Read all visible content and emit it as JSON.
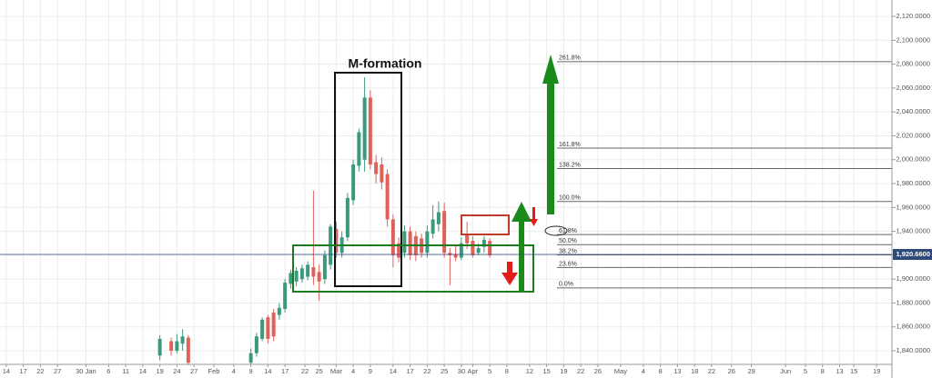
{
  "chart_data": {
    "type": "candlestick",
    "annotation": "M-formation",
    "up_color": "#3b9a7e",
    "down_color": "#e0605a",
    "x": [
      27,
      29,
      30,
      31,
      32,
      43,
      44,
      45,
      46,
      47,
      48,
      49,
      50,
      51,
      52,
      53,
      54,
      55,
      56,
      57,
      58,
      59,
      60,
      61,
      62,
      63,
      64,
      65,
      66,
      67,
      68,
      69,
      70,
      71,
      72,
      73,
      74,
      75,
      76,
      77,
      78,
      79,
      80,
      81,
      82,
      83,
      84,
      85
    ],
    "open": [
      1836,
      1848,
      1840,
      1846,
      1851,
      1830,
      1838,
      1850,
      1868,
      1872,
      1870,
      1875,
      1896,
      1898,
      1900,
      1902,
      1910,
      1906,
      1900,
      1912,
      1942,
      1922,
      1935,
      1966,
      1995,
      2000,
      2052,
      1998,
      1996,
      1988,
      1950,
      1930,
      1922,
      1940,
      1936,
      1934,
      1922,
      1938,
      1946,
      1957,
      1922,
      1921,
      1918,
      1938,
      1932,
      1922,
      1927,
      1932
    ],
    "high": [
      1853,
      1851,
      1854,
      1858,
      1853,
      1842,
      1855,
      1868,
      1870,
      1875,
      1880,
      1900,
      1908,
      1910,
      1912,
      1915,
      1974,
      1912,
      1924,
      1946,
      1948,
      1940,
      1972,
      2000,
      2026,
      2069,
      2058,
      2004,
      2002,
      1992,
      1954,
      1935,
      1945,
      1944,
      1940,
      1938,
      1945,
      1962,
      1965,
      1964,
      1926,
      1928,
      1935,
      1948,
      1936,
      1930,
      1936,
      1934
    ],
    "low": [
      1832,
      1836,
      1838,
      1840,
      1828,
      1829,
      1835,
      1848,
      1846,
      1848,
      1866,
      1872,
      1892,
      1894,
      1897,
      1899,
      1895,
      1882,
      1896,
      1908,
      1918,
      1918,
      1932,
      1962,
      1990,
      1990,
      1992,
      1980,
      1975,
      1944,
      1910,
      1914,
      1918,
      1916,
      1915,
      1918,
      1918,
      1934,
      1940,
      1918,
      1895,
      1915,
      1916,
      1925,
      1918,
      1920,
      1922,
      1918
    ],
    "close": [
      1850,
      1840,
      1848,
      1852,
      1830,
      1838,
      1852,
      1866,
      1850,
      1852,
      1876,
      1897,
      1905,
      1907,
      1909,
      1912,
      1902,
      1898,
      1920,
      1944,
      1922,
      1935,
      1968,
      1996,
      2023,
      2052,
      1996,
      1988,
      1981,
      1950,
      1920,
      1918,
      1940,
      1920,
      1920,
      1922,
      1940,
      1950,
      1956,
      1922,
      1920,
      1918,
      1930,
      1930,
      1920,
      1926,
      1933,
      1920
    ],
    "xlim": [
      -1.1,
      155.7
    ],
    "ylim": [
      1828.6,
      2133.7
    ],
    "xticks": [
      {
        "value": 0,
        "label": "14"
      },
      {
        "value": 3,
        "label": "17"
      },
      {
        "value": 6,
        "label": "22"
      },
      {
        "value": 9,
        "label": "27"
      },
      {
        "value": 14,
        "label": "30 Jan"
      },
      {
        "value": 18,
        "label": "6"
      },
      {
        "value": 21,
        "label": "11"
      },
      {
        "value": 24,
        "label": "14"
      },
      {
        "value": 27,
        "label": "19"
      },
      {
        "value": 30,
        "label": "24"
      },
      {
        "value": 33,
        "label": "27"
      },
      {
        "value": 36.5,
        "label": "Feb"
      },
      {
        "value": 40,
        "label": "4"
      },
      {
        "value": 43,
        "label": "9"
      },
      {
        "value": 46,
        "label": "14"
      },
      {
        "value": 49,
        "label": "17"
      },
      {
        "value": 52.5,
        "label": "22"
      },
      {
        "value": 55,
        "label": "25"
      },
      {
        "value": 58,
        "label": "Mar"
      },
      {
        "value": 61,
        "label": "4"
      },
      {
        "value": 64,
        "label": "9"
      },
      {
        "value": 68,
        "label": "14"
      },
      {
        "value": 71,
        "label": "17"
      },
      {
        "value": 74,
        "label": "22"
      },
      {
        "value": 77,
        "label": "25"
      },
      {
        "value": 80,
        "label": "30"
      },
      {
        "value": 82,
        "label": "Apr"
      },
      {
        "value": 85,
        "label": "5"
      },
      {
        "value": 88,
        "label": "8"
      },
      {
        "value": 92,
        "label": "12"
      },
      {
        "value": 95,
        "label": "15"
      },
      {
        "value": 98,
        "label": "19"
      },
      {
        "value": 101,
        "label": "22"
      },
      {
        "value": 104,
        "label": "26"
      },
      {
        "value": 108,
        "label": "May"
      },
      {
        "value": 112,
        "label": "4"
      },
      {
        "value": 115,
        "label": "8"
      },
      {
        "value": 118,
        "label": "13"
      },
      {
        "value": 121,
        "label": "18"
      },
      {
        "value": 124,
        "label": "22"
      },
      {
        "value": 127.5,
        "label": "26"
      },
      {
        "value": 131,
        "label": "29"
      },
      {
        "value": 137,
        "label": "Jun"
      },
      {
        "value": 140.5,
        "label": "5"
      },
      {
        "value": 143.5,
        "label": "8"
      },
      {
        "value": 146.5,
        "label": "13"
      },
      {
        "value": 149,
        "label": "15"
      },
      {
        "value": 153,
        "label": "19"
      }
    ],
    "yticks": [
      {
        "value": 2120,
        "label": "2,120.0000"
      },
      {
        "value": 2100,
        "label": "2,100.0000"
      },
      {
        "value": 2080,
        "label": "2,080.0000"
      },
      {
        "value": 2060,
        "label": "2,060.0000"
      },
      {
        "value": 2040,
        "label": "2,040.0000"
      },
      {
        "value": 2020,
        "label": "2,020.0000"
      },
      {
        "value": 2000,
        "label": "2,000.0000"
      },
      {
        "value": 1980,
        "label": "1,980.0000"
      },
      {
        "value": 1960,
        "label": "1,960.0000"
      },
      {
        "value": 1940,
        "label": "1,940.0000"
      },
      {
        "value": 1920,
        "label": "1,920.0000"
      },
      {
        "value": 1900,
        "label": "1,900.0000"
      },
      {
        "value": 1880,
        "label": "1,880.0000"
      },
      {
        "value": 1860,
        "label": "1,860.0000"
      },
      {
        "value": 1840,
        "label": "1,840.0000"
      }
    ],
    "last_price": {
      "value": 1920.66,
      "label": "1,920.6600"
    },
    "fib_levels": [
      {
        "value": 2082.1,
        "label": "261.8%"
      },
      {
        "value": 2009.7,
        "label": "161.8%"
      },
      {
        "value": 1992.6,
        "label": "138.2%"
      },
      {
        "value": 1965,
        "label": "100.0%"
      },
      {
        "value": 1937.3,
        "label": "61.8%"
      },
      {
        "value": 1928.8,
        "label": "50.0%"
      },
      {
        "value": 1920.3,
        "label": "38.2%"
      },
      {
        "value": 1909.7,
        "label": "23.6%"
      },
      {
        "value": 1892.6,
        "label": "0.0%"
      }
    ]
  }
}
